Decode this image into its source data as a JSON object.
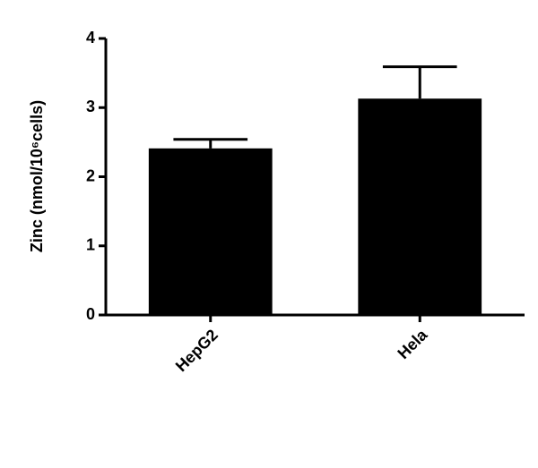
{
  "chart_data": {
    "type": "bar",
    "ylabel": "Zinc (nmol/10⁶cells)",
    "categories": [
      "HepG2",
      "Hela"
    ],
    "values": [
      2.41,
      3.13
    ],
    "errors": [
      0.13,
      0.46
    ],
    "color": "#000000",
    "ylim": [
      0,
      4
    ],
    "yticks": [
      0,
      1,
      2,
      3,
      4
    ],
    "grid": false
  }
}
